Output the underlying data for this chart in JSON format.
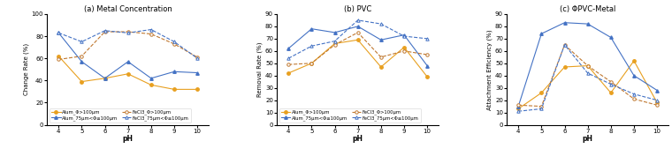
{
  "pH": [
    4,
    5,
    6,
    7,
    8,
    9,
    10
  ],
  "panel_a_title": "(a) Metal Concentration",
  "panel_a_ylabel": "Change Rate (%)",
  "panel_a_ylim": [
    0,
    100
  ],
  "panel_a_yticks": [
    0,
    20,
    40,
    60,
    80,
    100
  ],
  "a_alum_large": [
    62,
    39,
    42,
    46,
    36,
    32,
    32
  ],
  "a_alum_small": [
    83,
    57,
    42,
    57,
    42,
    48,
    47
  ],
  "a_fecl3_large": [
    59,
    62,
    84,
    84,
    82,
    73,
    61
  ],
  "a_fecl3_small": [
    83,
    75,
    85,
    83,
    86,
    75,
    60
  ],
  "panel_b_title": "(b) PVC",
  "panel_b_ylabel": "Removal Rate (%)",
  "panel_b_ylim": [
    0,
    90
  ],
  "panel_b_yticks": [
    0,
    10,
    20,
    30,
    40,
    50,
    60,
    70,
    80,
    90
  ],
  "b_alum_large": [
    42,
    50,
    66,
    69,
    47,
    63,
    39
  ],
  "b_alum_small": [
    62,
    78,
    75,
    80,
    69,
    73,
    48
  ],
  "b_fecl3_large": [
    49,
    50,
    65,
    75,
    55,
    60,
    57
  ],
  "b_fecl3_small": [
    54,
    64,
    68,
    85,
    82,
    72,
    70
  ],
  "panel_c_title": "(c) ΦPVC-Metal",
  "panel_c_ylabel": "Attachment Efficiency (%)",
  "panel_c_ylim": [
    0,
    90
  ],
  "panel_c_yticks": [
    0,
    10,
    20,
    30,
    40,
    50,
    60,
    70,
    80,
    90
  ],
  "c_alum_large": [
    13,
    26,
    47,
    48,
    26,
    52,
    18
  ],
  "c_alum_small": [
    15,
    74,
    83,
    82,
    71,
    40,
    28
  ],
  "c_fecl3_large": [
    16,
    15,
    65,
    48,
    35,
    21,
    16
  ],
  "c_fecl3_small": [
    11,
    13,
    65,
    42,
    33,
    25,
    20
  ],
  "color_alum_solid": "#E8A020",
  "color_alum_dash": "#4472C4",
  "color_fecl3_solid": "#C07830",
  "color_fecl3_dash": "#4472C4",
  "legend_labels": [
    "Alum_Φ>100μm",
    "Alum_75μm<Φ≤100μm",
    "FeCl3_Φ>100μm",
    "FeCl3_75μm<Φ≤100μm"
  ],
  "xlabel": "pH"
}
